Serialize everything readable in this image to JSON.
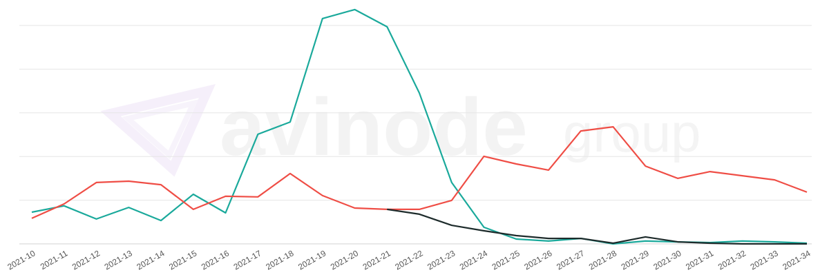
{
  "chart_data": {
    "type": "line",
    "watermark": {
      "brand": "avinode",
      "suffix": "group"
    },
    "categories": [
      "2021-10",
      "2021-11",
      "2021-12",
      "2021-13",
      "2021-14",
      "2021-15",
      "2021-16",
      "2021-17",
      "2021-18",
      "2021-19",
      "2021-20",
      "2021-21",
      "2021-22",
      "2021-23",
      "2021-24",
      "2021-25",
      "2021-26",
      "2021-27",
      "2021-28",
      "2021-29",
      "2021-30",
      "2021-31",
      "2021-32",
      "2021-33",
      "2021-34"
    ],
    "series": [
      {
        "color": "#1aa99b",
        "values": [
          14.5,
          17.4,
          11.4,
          16.7,
          10.7,
          22.7,
          14.2,
          50.2,
          55.8,
          103.2,
          107.3,
          99.4,
          69.1,
          28.1,
          7.6,
          2.2,
          1.3,
          2.5,
          0,
          1.3,
          0.9,
          0.6,
          1.3,
          0.9,
          0.3
        ]
      },
      {
        "color": "#ef4d45",
        "values": [
          11.7,
          18.3,
          28.1,
          28.7,
          27.1,
          15.8,
          21.8,
          21.5,
          32.2,
          22.1,
          16.4,
          15.8,
          15.8,
          19.9,
          40.1,
          36.6,
          33.8,
          51.7,
          53.6,
          35.6,
          30.0,
          33.1,
          31.2,
          29.3,
          23.7
        ]
      },
      {
        "color": "#1d2b2b",
        "values": [
          null,
          null,
          null,
          null,
          null,
          null,
          null,
          null,
          null,
          null,
          null,
          15.8,
          13.6,
          8.5,
          6.0,
          3.8,
          2.5,
          2.5,
          0.3,
          3.2,
          0.9,
          0.3,
          0,
          0,
          0
        ]
      }
    ],
    "ylim": [
      0,
      110
    ],
    "yticks": [
      0,
      20,
      40,
      60,
      80,
      100
    ],
    "grid": true
  }
}
